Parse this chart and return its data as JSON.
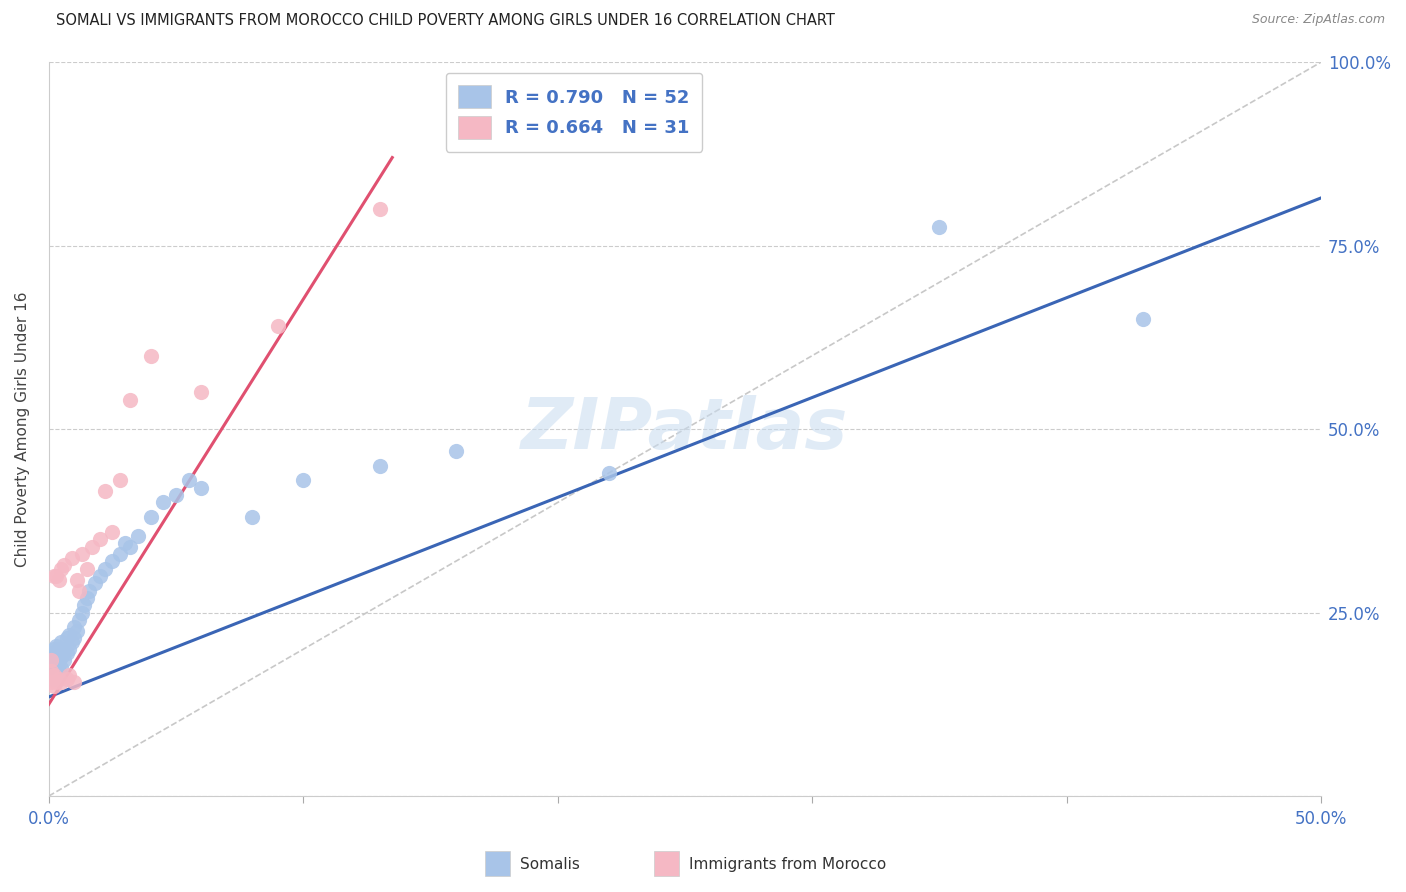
{
  "title": "SOMALI VS IMMIGRANTS FROM MOROCCO CHILD POVERTY AMONG GIRLS UNDER 16 CORRELATION CHART",
  "source": "Source: ZipAtlas.com",
  "ylabel": "Child Poverty Among Girls Under 16",
  "x_min": 0.0,
  "x_max": 0.5,
  "y_min": 0.0,
  "y_max": 1.0,
  "x_ticks": [
    0.0,
    0.1,
    0.2,
    0.3,
    0.4,
    0.5
  ],
  "x_tick_labels": [
    "0.0%",
    "",
    "",
    "",
    "",
    "50.0%"
  ],
  "y_tick_labels_right": [
    "100.0%",
    "75.0%",
    "50.0%",
    "25.0%",
    "0.0%"
  ],
  "y_ticks_right": [
    1.0,
    0.75,
    0.5,
    0.25,
    0.0
  ],
  "somali_R": 0.79,
  "somali_N": 52,
  "morocco_R": 0.664,
  "morocco_N": 31,
  "somali_color": "#A8C4E8",
  "morocco_color": "#F5B8C4",
  "somali_line_color": "#3A65B5",
  "morocco_line_color": "#E05070",
  "watermark": "ZIPatlas",
  "background_color": "#FFFFFF",
  "grid_color": "#CCCCCC",
  "legend_text_color": "#4472C4",
  "somali_line_x": [
    0.0,
    0.5
  ],
  "somali_line_y": [
    0.135,
    0.815
  ],
  "morocco_line_x": [
    0.0,
    0.135
  ],
  "morocco_line_y": [
    0.125,
    0.87
  ],
  "diag_line_x": [
    0.0,
    0.5
  ],
  "diag_line_y": [
    0.0,
    1.0
  ],
  "somali_scatter_x": [
    0.001,
    0.001,
    0.001,
    0.002,
    0.002,
    0.002,
    0.002,
    0.003,
    0.003,
    0.003,
    0.003,
    0.004,
    0.004,
    0.004,
    0.005,
    0.005,
    0.005,
    0.006,
    0.006,
    0.007,
    0.007,
    0.008,
    0.008,
    0.009,
    0.01,
    0.01,
    0.011,
    0.012,
    0.013,
    0.014,
    0.015,
    0.016,
    0.018,
    0.02,
    0.022,
    0.025,
    0.028,
    0.03,
    0.032,
    0.035,
    0.04,
    0.045,
    0.05,
    0.055,
    0.06,
    0.08,
    0.1,
    0.13,
    0.16,
    0.22,
    0.35,
    0.43
  ],
  "somali_scatter_y": [
    0.175,
    0.185,
    0.195,
    0.16,
    0.17,
    0.18,
    0.2,
    0.165,
    0.175,
    0.19,
    0.205,
    0.17,
    0.185,
    0.2,
    0.175,
    0.19,
    0.21,
    0.185,
    0.2,
    0.195,
    0.215,
    0.2,
    0.22,
    0.21,
    0.215,
    0.23,
    0.225,
    0.24,
    0.25,
    0.26,
    0.27,
    0.28,
    0.29,
    0.3,
    0.31,
    0.32,
    0.33,
    0.345,
    0.34,
    0.355,
    0.38,
    0.4,
    0.41,
    0.43,
    0.42,
    0.38,
    0.43,
    0.45,
    0.47,
    0.44,
    0.775,
    0.65
  ],
  "morocco_scatter_x": [
    0.001,
    0.001,
    0.001,
    0.002,
    0.002,
    0.002,
    0.003,
    0.003,
    0.004,
    0.004,
    0.005,
    0.005,
    0.006,
    0.007,
    0.008,
    0.009,
    0.01,
    0.011,
    0.012,
    0.013,
    0.015,
    0.017,
    0.02,
    0.022,
    0.025,
    0.028,
    0.032,
    0.04,
    0.06,
    0.09,
    0.13
  ],
  "morocco_scatter_y": [
    0.155,
    0.17,
    0.185,
    0.15,
    0.165,
    0.3,
    0.155,
    0.3,
    0.16,
    0.295,
    0.155,
    0.31,
    0.315,
    0.16,
    0.165,
    0.325,
    0.155,
    0.295,
    0.28,
    0.33,
    0.31,
    0.34,
    0.35,
    0.415,
    0.36,
    0.43,
    0.54,
    0.6,
    0.55,
    0.64,
    0.8
  ]
}
